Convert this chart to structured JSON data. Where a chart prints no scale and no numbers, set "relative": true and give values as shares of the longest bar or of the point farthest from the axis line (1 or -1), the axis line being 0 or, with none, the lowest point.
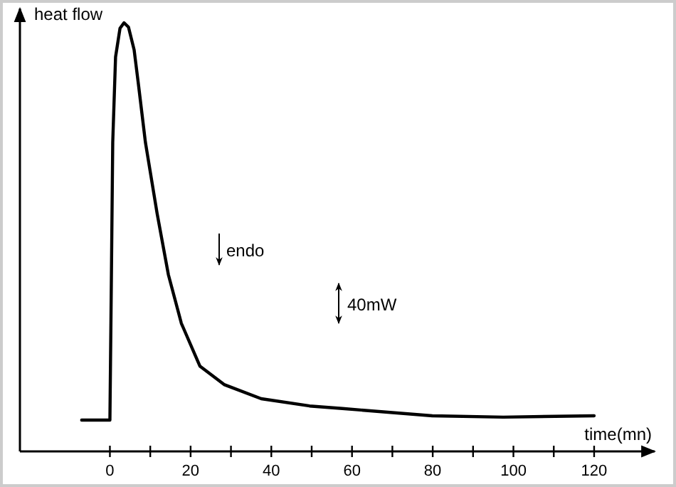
{
  "chart_data": {
    "type": "line",
    "relative": true,
    "ylabel": "heat flow",
    "xlabel": "time(mn)",
    "x": [
      -7,
      0,
      0.35,
      0.7,
      1.4,
      2.5,
      3.5,
      4.6,
      6,
      7.1,
      8.8,
      11.7,
      14.5,
      17.7,
      22.3,
      28.3,
      37.5,
      49.5,
      57.6,
      79.9,
      97.5,
      120
    ],
    "values": [
      0.073,
      0.073,
      0.389,
      0.721,
      0.92,
      0.987,
      1,
      0.99,
      0.937,
      0.854,
      0.721,
      0.555,
      0.412,
      0.299,
      0.199,
      0.156,
      0.123,
      0.106,
      0.1,
      0.083,
      0.08,
      0.083
    ],
    "color": "#000000",
    "xlim": [
      -22.3,
      135
    ],
    "xticks": [
      0,
      {
        "value": 10,
        "label": null
      },
      20,
      {
        "value": 30,
        "label": null
      },
      40,
      {
        "value": 50,
        "label": null
      },
      60,
      {
        "value": 70,
        "label": null
      },
      80,
      {
        "value": 90,
        "label": null
      },
      100,
      {
        "value": 110,
        "label": null
      },
      120
    ],
    "tick_labels": "x",
    "annotations": [
      "endo",
      "40mW"
    ]
  }
}
